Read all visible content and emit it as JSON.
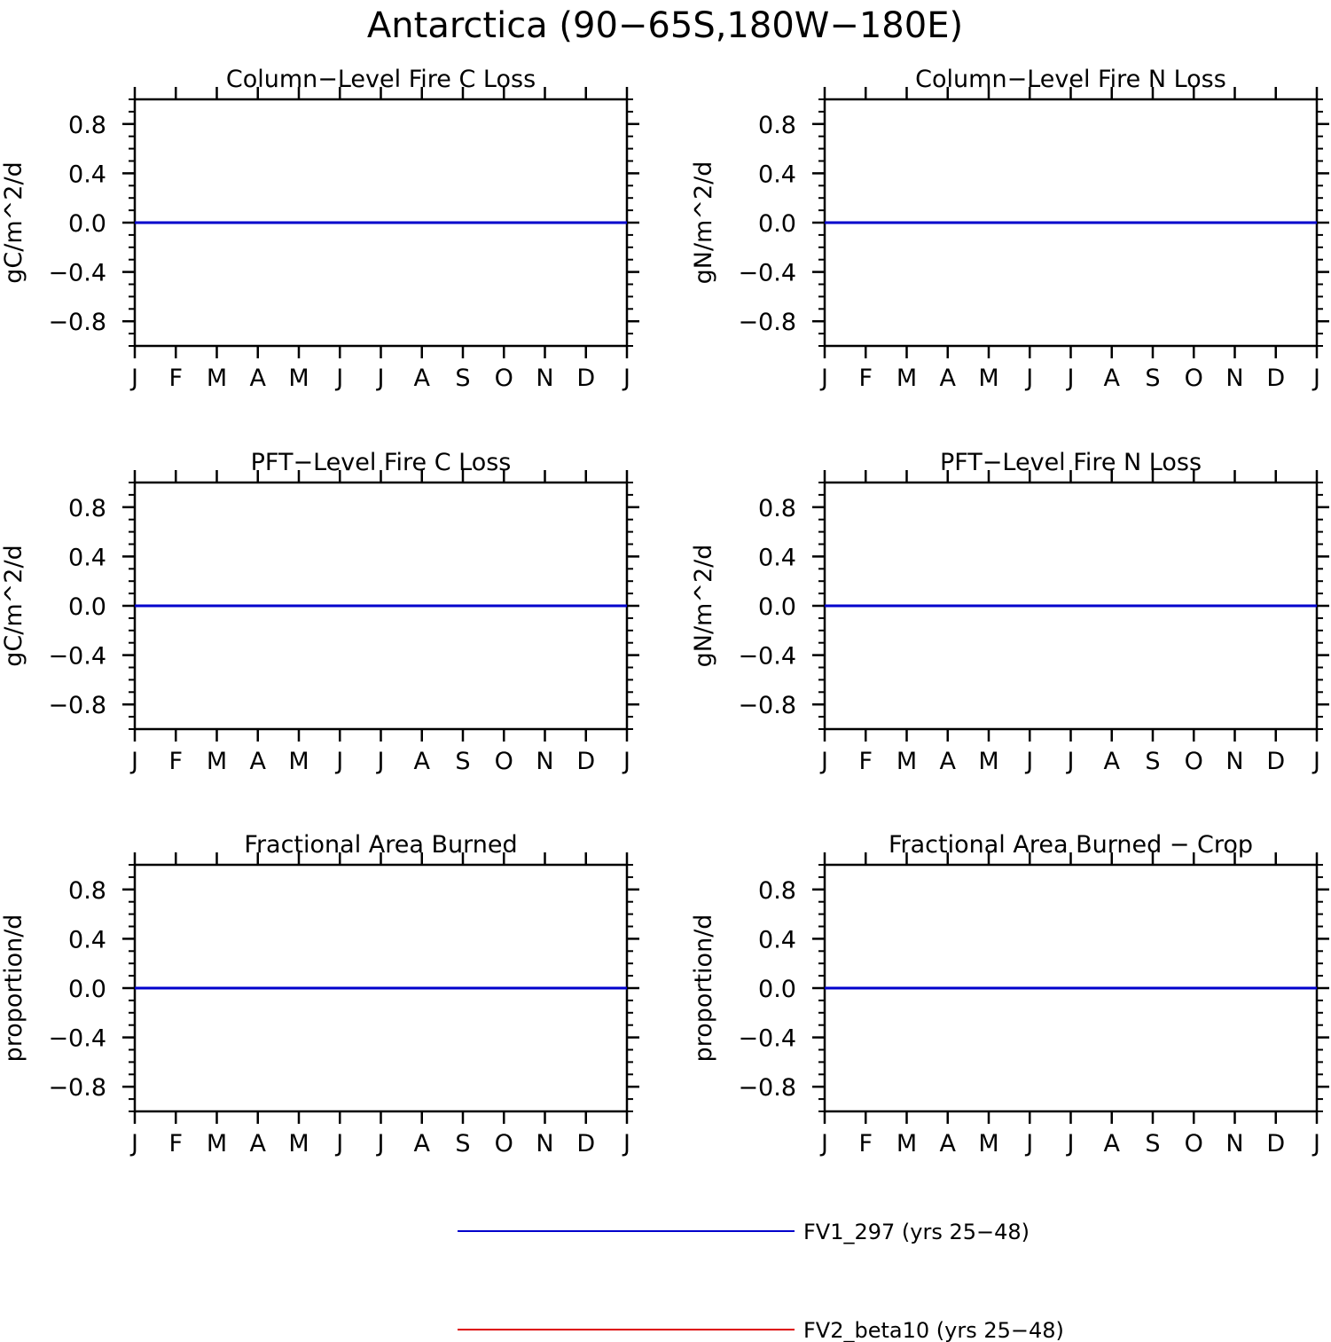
{
  "figure_title": "Antarctica (90-65S,180W-180E)",
  "colors": {
    "series_1": "#0000cc",
    "series_2": "#dd0000",
    "frame": "#000000"
  },
  "legend": [
    {
      "label": "FV1_297 (yrs 25-48)",
      "color": "#0000cc"
    },
    {
      "label": "FV2_beta10 (yrs 25-48)",
      "color": "#dd0000"
    }
  ],
  "chart_data": [
    {
      "type": "line",
      "title": "Column-Level Fire C Loss",
      "ylabel": "gC/m^2/d",
      "xlabel": "",
      "categories": [
        "J",
        "F",
        "M",
        "A",
        "M",
        "J",
        "J",
        "A",
        "S",
        "O",
        "N",
        "D",
        "J"
      ],
      "ylim": [
        -1.0,
        1.0
      ],
      "yticks": [
        -0.8,
        -0.4,
        0.0,
        0.4,
        0.8
      ],
      "ytick_labels": [
        "-0.8",
        "-0.4",
        "0.0",
        "0.4",
        "0.8"
      ],
      "series": [
        {
          "name": "FV1_297 (yrs 25-48)",
          "color": "#0000cc",
          "values": [
            0,
            0,
            0,
            0,
            0,
            0,
            0,
            0,
            0,
            0,
            0,
            0,
            0
          ]
        },
        {
          "name": "FV2_beta10 (yrs 25-48)",
          "color": "#dd0000",
          "values": [
            0,
            0,
            0,
            0,
            0,
            0,
            0,
            0,
            0,
            0,
            0,
            0,
            0
          ]
        }
      ]
    },
    {
      "type": "line",
      "title": "Column-Level Fire N Loss",
      "ylabel": "gN/m^2/d",
      "xlabel": "",
      "categories": [
        "J",
        "F",
        "M",
        "A",
        "M",
        "J",
        "J",
        "A",
        "S",
        "O",
        "N",
        "D",
        "J"
      ],
      "ylim": [
        -1.0,
        1.0
      ],
      "yticks": [
        -0.8,
        -0.4,
        0.0,
        0.4,
        0.8
      ],
      "ytick_labels": [
        "-0.8",
        "-0.4",
        "0.0",
        "0.4",
        "0.8"
      ],
      "series": [
        {
          "name": "FV1_297 (yrs 25-48)",
          "color": "#0000cc",
          "values": [
            0,
            0,
            0,
            0,
            0,
            0,
            0,
            0,
            0,
            0,
            0,
            0,
            0
          ]
        },
        {
          "name": "FV2_beta10 (yrs 25-48)",
          "color": "#dd0000",
          "values": [
            0,
            0,
            0,
            0,
            0,
            0,
            0,
            0,
            0,
            0,
            0,
            0,
            0
          ]
        }
      ]
    },
    {
      "type": "line",
      "title": "PFT-Level Fire C Loss",
      "ylabel": "gC/m^2/d",
      "xlabel": "",
      "categories": [
        "J",
        "F",
        "M",
        "A",
        "M",
        "J",
        "J",
        "A",
        "S",
        "O",
        "N",
        "D",
        "J"
      ],
      "ylim": [
        -1.0,
        1.0
      ],
      "yticks": [
        -0.8,
        -0.4,
        0.0,
        0.4,
        0.8
      ],
      "ytick_labels": [
        "-0.8",
        "-0.4",
        "0.0",
        "0.4",
        "0.8"
      ],
      "series": [
        {
          "name": "FV1_297 (yrs 25-48)",
          "color": "#0000cc",
          "values": [
            0,
            0,
            0,
            0,
            0,
            0,
            0,
            0,
            0,
            0,
            0,
            0,
            0
          ]
        },
        {
          "name": "FV2_beta10 (yrs 25-48)",
          "color": "#dd0000",
          "values": [
            0,
            0,
            0,
            0,
            0,
            0,
            0,
            0,
            0,
            0,
            0,
            0,
            0
          ]
        }
      ]
    },
    {
      "type": "line",
      "title": "PFT-Level Fire N Loss",
      "ylabel": "gN/m^2/d",
      "xlabel": "",
      "categories": [
        "J",
        "F",
        "M",
        "A",
        "M",
        "J",
        "J",
        "A",
        "S",
        "O",
        "N",
        "D",
        "J"
      ],
      "ylim": [
        -1.0,
        1.0
      ],
      "yticks": [
        -0.8,
        -0.4,
        0.0,
        0.4,
        0.8
      ],
      "ytick_labels": [
        "-0.8",
        "-0.4",
        "0.0",
        "0.4",
        "0.8"
      ],
      "series": [
        {
          "name": "FV1_297 (yrs 25-48)",
          "color": "#0000cc",
          "values": [
            0,
            0,
            0,
            0,
            0,
            0,
            0,
            0,
            0,
            0,
            0,
            0,
            0
          ]
        },
        {
          "name": "FV2_beta10 (yrs 25-48)",
          "color": "#dd0000",
          "values": [
            0,
            0,
            0,
            0,
            0,
            0,
            0,
            0,
            0,
            0,
            0,
            0,
            0
          ]
        }
      ]
    },
    {
      "type": "line",
      "title": "Fractional Area Burned",
      "ylabel": "proportion/d",
      "xlabel": "",
      "categories": [
        "J",
        "F",
        "M",
        "A",
        "M",
        "J",
        "J",
        "A",
        "S",
        "O",
        "N",
        "D",
        "J"
      ],
      "ylim": [
        -1.0,
        1.0
      ],
      "yticks": [
        -0.8,
        -0.4,
        0.0,
        0.4,
        0.8
      ],
      "ytick_labels": [
        "-0.8",
        "-0.4",
        "0.0",
        "0.4",
        "0.8"
      ],
      "series": [
        {
          "name": "FV1_297 (yrs 25-48)",
          "color": "#0000cc",
          "values": [
            0,
            0,
            0,
            0,
            0,
            0,
            0,
            0,
            0,
            0,
            0,
            0,
            0
          ]
        },
        {
          "name": "FV2_beta10 (yrs 25-48)",
          "color": "#dd0000",
          "values": [
            0,
            0,
            0,
            0,
            0,
            0,
            0,
            0,
            0,
            0,
            0,
            0,
            0
          ]
        }
      ]
    },
    {
      "type": "line",
      "title": "Fractional Area Burned - Crop",
      "ylabel": "proportion/d",
      "xlabel": "",
      "categories": [
        "J",
        "F",
        "M",
        "A",
        "M",
        "J",
        "J",
        "A",
        "S",
        "O",
        "N",
        "D",
        "J"
      ],
      "ylim": [
        -1.0,
        1.0
      ],
      "yticks": [
        -0.8,
        -0.4,
        0.0,
        0.4,
        0.8
      ],
      "ytick_labels": [
        "-0.8",
        "-0.4",
        "0.0",
        "0.4",
        "0.8"
      ],
      "series": [
        {
          "name": "FV1_297 (yrs 25-48)",
          "color": "#0000cc",
          "values": [
            0,
            0,
            0,
            0,
            0,
            0,
            0,
            0,
            0,
            0,
            0,
            0,
            0
          ]
        },
        {
          "name": "FV2_beta10 (yrs 25-48)",
          "color": "#dd0000",
          "values": [
            0,
            0,
            0,
            0,
            0,
            0,
            0,
            0,
            0,
            0,
            0,
            0,
            0
          ]
        }
      ]
    }
  ]
}
